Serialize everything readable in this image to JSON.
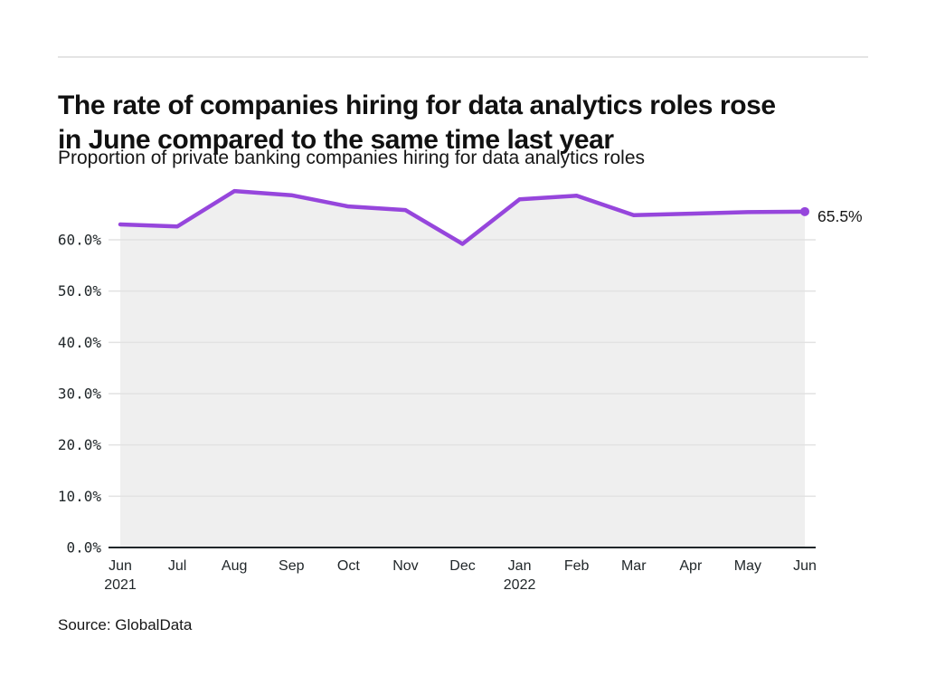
{
  "header": {
    "title_lines": [
      "The rate of companies hiring for data analytics roles rose",
      "in June compared to the same time last year"
    ],
    "subtitle": "Proportion of private banking companies hiring for data analytics roles"
  },
  "footer": {
    "source": "Source: GlobalData"
  },
  "chart_data": {
    "type": "area",
    "title": "The rate of companies hiring for data analytics roles rose in June compared to the same time last year",
    "subtitle": "Proportion of private banking companies hiring for data analytics roles",
    "categories": [
      "Jun 2021",
      "Jul",
      "Aug",
      "Sep",
      "Oct",
      "Nov",
      "Dec",
      "Jan 2022",
      "Feb",
      "Mar",
      "Apr",
      "May",
      "Jun"
    ],
    "x_labels": [
      {
        "month": "Jun",
        "year": "2021"
      },
      {
        "month": "Jul"
      },
      {
        "month": "Aug"
      },
      {
        "month": "Sep"
      },
      {
        "month": "Oct"
      },
      {
        "month": "Nov"
      },
      {
        "month": "Dec"
      },
      {
        "month": "Jan",
        "year": "2022"
      },
      {
        "month": "Feb"
      },
      {
        "month": "Mar"
      },
      {
        "month": "Apr"
      },
      {
        "month": "May"
      },
      {
        "month": "Jun"
      }
    ],
    "series": [
      {
        "name": "Proportion of private banking companies hiring for data analytics roles",
        "values": [
          63.0,
          62.6,
          69.5,
          68.7,
          66.5,
          65.8,
          59.2,
          67.9,
          68.6,
          64.8,
          65.1,
          65.4,
          65.5
        ]
      }
    ],
    "end_label": "65.5%",
    "xlabel": "",
    "ylabel": "",
    "ylim": [
      0,
      70
    ],
    "yticks": [
      0,
      10,
      20,
      30,
      40,
      50,
      60
    ],
    "ytick_labels": [
      "0.0%",
      "10.0%",
      "20.0%",
      "30.0%",
      "40.0%",
      "50.0%",
      "60.0%"
    ],
    "grid": true,
    "legend": false,
    "colors": {
      "line": "#9646dc",
      "area": "#efefef",
      "grid": "#e2e2e2",
      "axis": "#21272a",
      "tick_text": "#21272a"
    }
  }
}
